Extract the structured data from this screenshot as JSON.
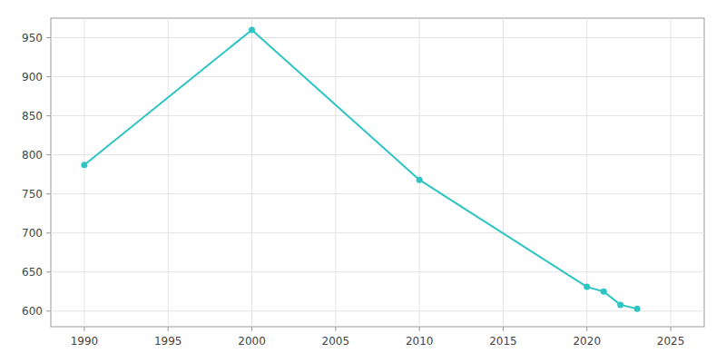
{
  "chart_data": {
    "type": "line",
    "x": [
      1990,
      2000,
      2010,
      2020,
      2021,
      2022,
      2023
    ],
    "values": [
      787,
      960,
      768,
      631,
      625,
      608,
      603
    ],
    "color": "#2ec4c4",
    "marker": "circle",
    "xlim": [
      1988,
      2027
    ],
    "ylim": [
      580,
      975
    ],
    "xticks": [
      1990,
      1995,
      2000,
      2005,
      2010,
      2015,
      2020,
      2025
    ],
    "yticks": [
      600,
      650,
      700,
      750,
      800,
      850,
      900,
      950
    ],
    "grid": true
  }
}
